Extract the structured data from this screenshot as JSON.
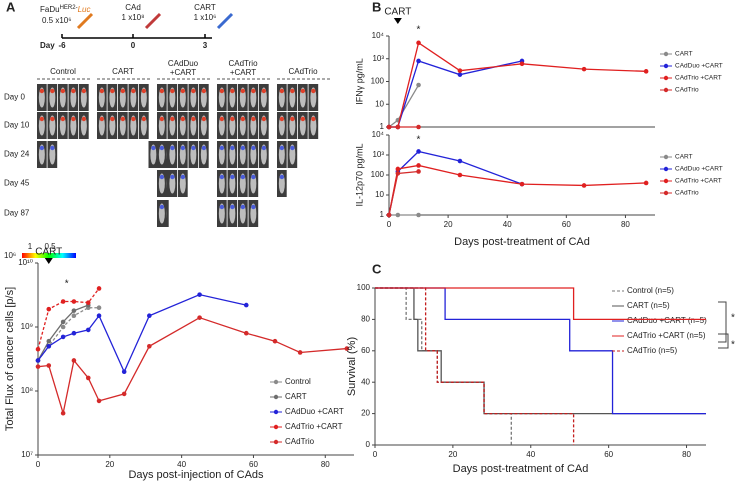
{
  "panels": [
    "A",
    "B",
    "C"
  ],
  "schema": {
    "cell": "FaDu",
    "cell_sup": "HER2-",
    "cell_luc": "Luc",
    "cell_dose": "0.5 x10⁶",
    "day_label": "Day",
    "days": [
      "-6",
      "0",
      "3"
    ],
    "cad": "CAd",
    "cad_dose": "1 x10⁸",
    "cart": "CART",
    "cart_dose": "1 x10⁶"
  },
  "imaging": {
    "groups": [
      [
        "Control"
      ],
      [
        "CART"
      ],
      [
        "CAdDuo",
        "+CART"
      ],
      [
        "CAdTrio",
        "+CART"
      ],
      [
        "CAdTrio"
      ]
    ],
    "rows": [
      "Day 0",
      "Day 10",
      "Day 24",
      "Day 45",
      "Day 87"
    ],
    "scale_ticks": [
      "1",
      "0.5"
    ],
    "scale_unit": "10⁶"
  },
  "chart_data": [
    {
      "type": "line",
      "log_y": true,
      "annotations": [
        "CART",
        "*"
      ],
      "ylabel": "Total Flux of cancer cells [p/s]",
      "xlabel": "Days post-injection of CAds",
      "xlim": [
        0,
        88
      ],
      "xticks": [
        0,
        20,
        40,
        60,
        80
      ],
      "ylim": [
        10000000,
        10000000000
      ],
      "yticks": [
        {
          "value": 10000000,
          "label": "10⁷"
        },
        {
          "value": 100000000,
          "label": "10⁸"
        },
        {
          "value": 1000000000,
          "label": "10⁹"
        },
        {
          "value": 10000000000,
          "label": "10¹⁰"
        }
      ],
      "series": [
        {
          "name": "Control",
          "color": "#8a8a8a",
          "dash": true,
          "x": [
            0,
            3,
            7,
            10,
            14,
            17
          ],
          "values": [
            300000000,
            500000000,
            1000000000,
            1500000000,
            2000000000,
            2000000000
          ]
        },
        {
          "name": "CART",
          "color": "#6e6e6e",
          "dash": false,
          "x": [
            0,
            3,
            7,
            10,
            14
          ],
          "values": [
            300000000,
            600000000,
            1200000000,
            1800000000,
            2200000000
          ]
        },
        {
          "name": "CAdDuo +CART",
          "color": "#2323d8",
          "dash": false,
          "x": [
            0,
            3,
            7,
            10,
            14,
            17,
            24,
            31,
            45,
            58
          ],
          "values": [
            300000000,
            500000000,
            700000000,
            800000000,
            900000000,
            1500000000,
            200000000,
            1500000000,
            3200000000,
            2200000000
          ]
        },
        {
          "name": "CAdTrio +CART",
          "color": "#e02020",
          "dash": true,
          "x": [
            0,
            3,
            7,
            10,
            14,
            17
          ],
          "values": [
            450000000,
            1900000000,
            2500000000,
            2500000000,
            2400000000,
            4000000000
          ]
        },
        {
          "name": "CAdTrio",
          "color": "#d42a2a",
          "dash": false,
          "x": [
            0,
            3,
            7,
            10,
            14,
            17,
            24,
            31,
            45,
            58,
            66,
            73,
            86
          ],
          "values": [
            240000000,
            250000000,
            45000000,
            300000000,
            160000000,
            70000000,
            90000000,
            500000000,
            1400000000,
            800000000,
            600000000,
            400000000,
            460000000
          ]
        }
      ]
    },
    {
      "type": "line",
      "log_y": true,
      "annotations": [
        "CART",
        "*"
      ],
      "ylabel": "IFNγ pg/mL",
      "xlim": [
        0,
        90
      ],
      "ylim": [
        1,
        10000
      ],
      "yticks": [
        1,
        10,
        100,
        {
          "value": 1000,
          "label": "10³"
        },
        {
          "value": 10000,
          "label": "10⁴"
        }
      ],
      "series": [
        {
          "name": "CART",
          "color": "#8a8a8a",
          "dash": false,
          "x": [
            0,
            3,
            10
          ],
          "values": [
            1,
            2,
            70
          ]
        },
        {
          "name": "CAdDuo +CART",
          "color": "#2323d8",
          "dash": false,
          "x": [
            0,
            3,
            10,
            24,
            45
          ],
          "values": [
            1,
            1,
            800,
            200,
            800
          ]
        },
        {
          "name": "CAdTrio +CART",
          "color": "#e02020",
          "dash": false,
          "x": [
            0,
            3,
            10,
            24,
            45,
            66,
            87
          ],
          "values": [
            1,
            1,
            5000,
            300,
            600,
            350,
            280
          ]
        },
        {
          "name": "CAdTrio",
          "color": "#d42a2a",
          "dash": false,
          "x": [
            0,
            3,
            10
          ],
          "values": [
            1,
            1,
            1
          ]
        }
      ]
    },
    {
      "type": "line",
      "log_y": true,
      "annotations": [
        "*"
      ],
      "ylabel": "IL-12p70 pg/mL",
      "xlabel": "Days post-treatment of CAd",
      "xlim": [
        0,
        90
      ],
      "xticks": [
        0,
        20,
        40,
        60,
        80
      ],
      "ylim": [
        1,
        10000
      ],
      "yticks": [
        1,
        10,
        100,
        {
          "value": 1000,
          "label": "10³"
        },
        {
          "value": 10000,
          "label": "10⁴"
        }
      ],
      "series": [
        {
          "name": "CART",
          "color": "#8a8a8a",
          "dash": false,
          "x": [
            0,
            3,
            10
          ],
          "values": [
            1,
            1,
            1
          ]
        },
        {
          "name": "CAdDuo +CART",
          "color": "#2323d8",
          "dash": false,
          "x": [
            0,
            3,
            10,
            24,
            45
          ],
          "values": [
            1,
            150,
            1500,
            500,
            35
          ]
        },
        {
          "name": "CAdTrio +CART",
          "color": "#e02020",
          "dash": false,
          "x": [
            0,
            3,
            10,
            24,
            45,
            66,
            87
          ],
          "values": [
            1,
            200,
            300,
            100,
            35,
            30,
            40
          ]
        },
        {
          "name": "CAdTrio",
          "color": "#d42a2a",
          "dash": false,
          "x": [
            0,
            3,
            10
          ],
          "values": [
            1,
            120,
            150
          ]
        }
      ]
    },
    {
      "type": "step",
      "annotations": [
        "*",
        "*"
      ],
      "ylabel": "Survival (%)",
      "xlabel": "Days post-treatment of CAd",
      "xlim": [
        0,
        85
      ],
      "xticks": [
        0,
        20,
        40,
        60,
        80
      ],
      "ylim": [
        0,
        100
      ],
      "yticks": [
        0,
        20,
        40,
        60,
        80,
        100
      ],
      "series": [
        {
          "name": "Control (n=5)",
          "color": "#777777",
          "dash": true,
          "x": [
            0,
            8,
            12,
            16,
            28,
            35
          ],
          "values": [
            100,
            80,
            60,
            40,
            20,
            0
          ]
        },
        {
          "name": "CART (n=5)",
          "color": "#555555",
          "dash": false,
          "x": [
            0,
            10,
            11,
            17,
            28,
            85
          ],
          "values": [
            100,
            80,
            60,
            40,
            20,
            20
          ]
        },
        {
          "name": "CAdDuo +CART (n=5)",
          "color": "#2323d8",
          "dash": false,
          "x": [
            0,
            18,
            50,
            61,
            85
          ],
          "values": [
            100,
            80,
            60,
            20,
            20
          ]
        },
        {
          "name": "CAdTrio +CART (n=5)",
          "color": "#e02020",
          "dash": false,
          "x": [
            0,
            51,
            85
          ],
          "values": [
            100,
            80,
            80
          ]
        },
        {
          "name": "CAdTrio (n=5)",
          "color": "#c41e1e",
          "dash": true,
          "x": [
            0,
            13,
            16,
            28,
            51
          ],
          "values": [
            100,
            60,
            40,
            20,
            0
          ]
        }
      ]
    }
  ]
}
